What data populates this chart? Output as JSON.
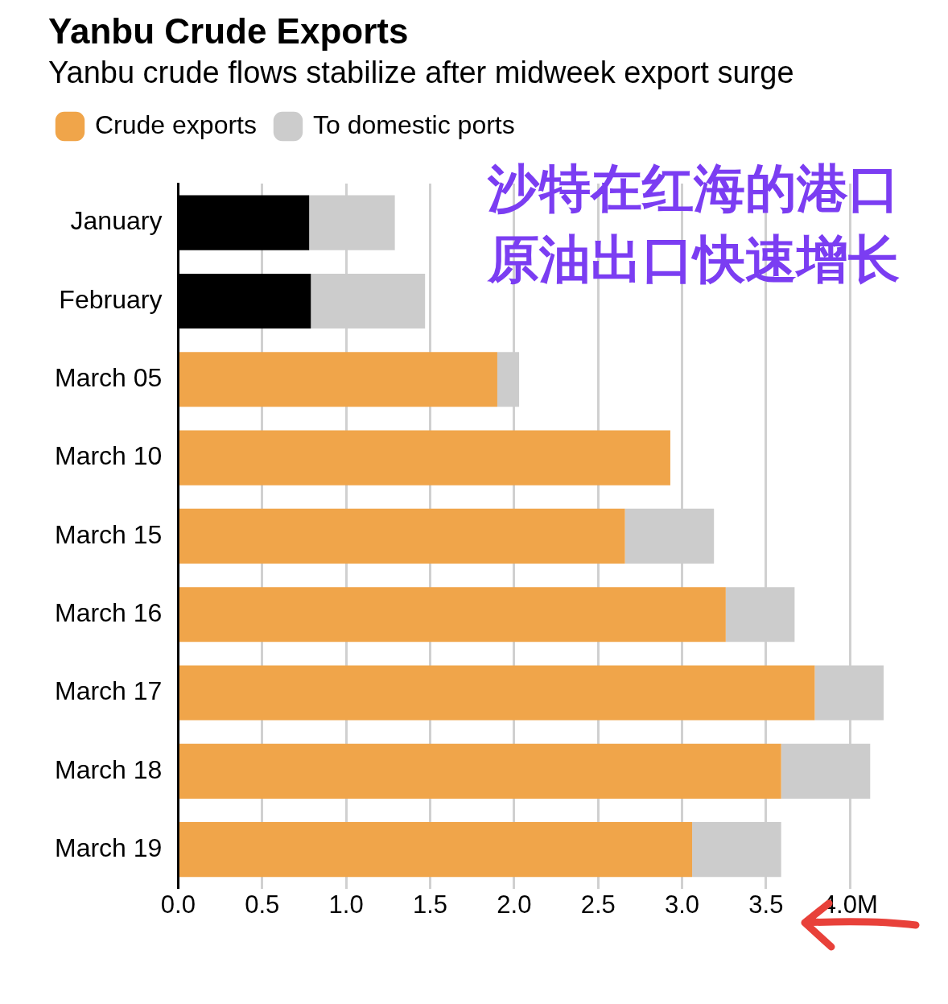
{
  "chart_data": {
    "type": "bar",
    "orientation": "horizontal",
    "stacked": true,
    "title": "Yanbu Crude Exports",
    "subtitle": "Yanbu crude flows stabilize after midweek export surge",
    "categories": [
      "January",
      "February",
      "March 05",
      "March 10",
      "March 15",
      "March 16",
      "March 17",
      "March 18",
      "March 19"
    ],
    "series": [
      {
        "name": "Crude exports",
        "color": "#f0a54a",
        "colors": [
          "#000000",
          "#000000",
          "#f0a54a",
          "#f0a54a",
          "#f0a54a",
          "#f0a54a",
          "#f0a54a",
          "#f0a54a",
          "#f0a54a"
        ],
        "values": [
          0.78,
          0.79,
          1.9,
          2.93,
          2.66,
          3.26,
          3.79,
          3.59,
          3.06
        ]
      },
      {
        "name": "To domestic ports",
        "color": "#cccccc",
        "values": [
          0.51,
          0.68,
          0.13,
          0,
          0.53,
          0.41,
          0.41,
          0.53,
          0.53
        ]
      }
    ],
    "xlim": [
      0,
      4.2
    ],
    "xticks": [
      {
        "value": 0,
        "label": "0.0"
      },
      0.5,
      {
        "value": 1,
        "label": "1.0"
      },
      1.5,
      {
        "value": 2,
        "label": "2.0"
      },
      2.5,
      {
        "value": 3,
        "label": "3.0"
      },
      3.5,
      {
        "value": 4,
        "label": "4.0M"
      }
    ],
    "grid": "x",
    "legend": "top left",
    "annotations": [
      "沙特在红海的港口",
      "原油出口快速增长"
    ]
  }
}
